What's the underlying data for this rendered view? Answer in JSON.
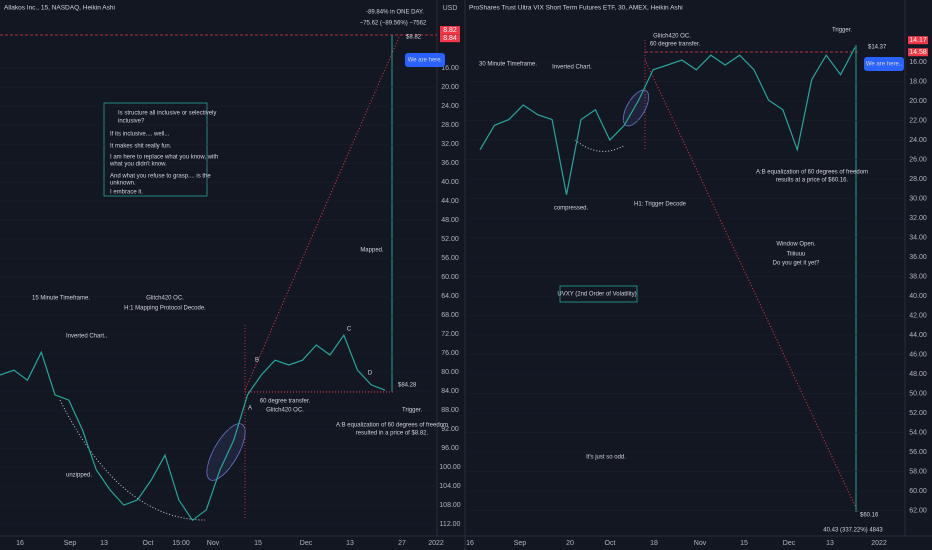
{
  "chart_data": [
    {
      "type": "line",
      "title": "Allakos Inc., 15, NASDAQ, Heikin Ashi",
      "currency": "USD",
      "color": "#26a69a",
      "inverted_axis": true,
      "ylim": [
        2.7,
        114.3
      ],
      "yticks": [
        {
          "value": 16,
          "label": "16.00"
        },
        {
          "value": 20,
          "label": "20.00"
        },
        {
          "value": 24,
          "label": "24.00"
        },
        {
          "value": 28,
          "label": "28.00"
        },
        {
          "value": 32,
          "label": "32.00"
        },
        {
          "value": 36,
          "label": "36.00"
        },
        {
          "value": 40,
          "label": "40.00"
        },
        {
          "value": 44,
          "label": "44.00"
        },
        {
          "value": 48,
          "label": "48.00"
        },
        {
          "value": 52,
          "label": "52.00"
        },
        {
          "value": 56,
          "label": "56.00"
        },
        {
          "value": 60,
          "label": "60.00"
        },
        {
          "value": 64,
          "label": "64.00"
        },
        {
          "value": 68,
          "label": "68.00"
        },
        {
          "value": 72,
          "label": "72.00"
        },
        {
          "value": 76,
          "label": "76.00"
        },
        {
          "value": 80,
          "label": "80.00"
        },
        {
          "value": 84,
          "label": "84.00"
        },
        {
          "value": 88,
          "label": "88.00"
        },
        {
          "value": 92,
          "label": "92.00"
        },
        {
          "value": 96,
          "label": "96.00"
        },
        {
          "value": 100,
          "label": "100.00"
        },
        {
          "value": 104,
          "label": "104.00"
        },
        {
          "value": 108,
          "label": "108.00"
        },
        {
          "value": 112,
          "label": "112.00"
        }
      ],
      "price_labels": [
        {
          "value": 8.82,
          "label": "8.82"
        },
        {
          "value": 8.84,
          "label": "8.84"
        }
      ],
      "xtick_labels": [
        "16",
        "Sep",
        "13",
        "Oct",
        "15:00",
        "Nov",
        "15",
        "Dec",
        "13",
        "27",
        "2022"
      ],
      "values": [
        80.6,
        79.6,
        81.7,
        75.8,
        84.8,
        85.9,
        92.2,
        100.6,
        104.8,
        108.0,
        106.9,
        102.7,
        97.5,
        106.9,
        111.2,
        109.0,
        100.6,
        94.3,
        84.8,
        80.6,
        77.5,
        78.5,
        77.5,
        74.3,
        76.4,
        72.2,
        79.6,
        82.7,
        83.8
      ],
      "annotations": [
        "-89.84% in ONE DAY.",
        "−75.62 (−89.56%) −7562",
        "$8.82",
        "We are here.",
        "Is structure all inclusive or selectively",
        "inclusive?",
        "If its inclusive.... well...",
        "It makes shit really fun.",
        "I am here to replace what you know, with",
        "what you didn't know.",
        "And what you refuse to grasp.... is the",
        "unknown.",
        "I embrace it.",
        "15 Minute Timeframe.",
        "Inverted Chart..",
        "Glitch420 OC.",
        "H:1 Mapping Protocol Decode.",
        "Mapped.",
        "$84.28",
        "60 degree transfer.",
        "Glitch420 OC.",
        "Trigger.",
        "A:B equalization of 60 degrees of freedom",
        "resulted in a price of $8.82.",
        "unzipped.",
        "A",
        "B",
        "C",
        "D"
      ]
    },
    {
      "type": "line",
      "title": "ProShares Trust Ultra VIX Short Term Futures ETF, 30, AMEX, Heikin Ashi",
      "color": "#26a69a",
      "inverted_axis": true,
      "ylim": [
        10.15,
        64.5
      ],
      "yticks": [
        {
          "value": 16,
          "label": "16.00"
        },
        {
          "value": 18,
          "label": "18.00"
        },
        {
          "value": 20,
          "label": "20.00"
        },
        {
          "value": 22,
          "label": "22.00"
        },
        {
          "value": 24,
          "label": "24.00"
        },
        {
          "value": 26,
          "label": "26.00"
        },
        {
          "value": 28,
          "label": "28.00"
        },
        {
          "value": 30,
          "label": "30.00"
        },
        {
          "value": 32,
          "label": "32.00"
        },
        {
          "value": 34,
          "label": "34.00"
        },
        {
          "value": 36,
          "label": "36.00"
        },
        {
          "value": 38,
          "label": "38.00"
        },
        {
          "value": 40,
          "label": "40.00"
        },
        {
          "value": 42,
          "label": "42.00"
        },
        {
          "value": 44,
          "label": "44.00"
        },
        {
          "value": 46,
          "label": "46.00"
        },
        {
          "value": 48,
          "label": "48.00"
        },
        {
          "value": 50,
          "label": "50.00"
        },
        {
          "value": 52,
          "label": "52.00"
        },
        {
          "value": 54,
          "label": "54.00"
        },
        {
          "value": 56,
          "label": "56.00"
        },
        {
          "value": 58,
          "label": "58.00"
        },
        {
          "value": 60,
          "label": "60.00"
        },
        {
          "value": 62,
          "label": "62.00"
        }
      ],
      "price_labels": [
        {
          "value": 14.17,
          "label": "14.17"
        },
        {
          "value": 14.58,
          "label": "14.58"
        }
      ],
      "xtick_labels": [
        "16",
        "Sep",
        "20",
        "Oct",
        "18",
        "Nov",
        "15",
        "Dec",
        "13",
        "2022"
      ],
      "values": [
        25.0,
        22.5,
        21.9,
        20.4,
        21.4,
        21.9,
        29.6,
        21.9,
        20.9,
        24.0,
        22.5,
        19.9,
        16.8,
        16.3,
        15.8,
        16.8,
        15.3,
        16.3,
        15.3,
        16.8,
        19.9,
        20.9,
        25.0,
        17.8,
        15.3,
        17.3,
        14.5
      ],
      "annotations": [
        "Trigger.",
        "$14.37",
        "We are here..",
        "30 Minute Timeframe.",
        "Inverted Chart.",
        "Glitch420 OC.",
        "60 degree transfer.",
        "A:B equalization of 60 degrees of freedom",
        "results at a price of $60.16.",
        "compressed.",
        "H1: Trigger Decode",
        "Window Open.",
        "Tiiiiuuu",
        "Do you get it yet?",
        "UVXY (2nd Order of Volatility)",
        "It's just so odd.",
        "$60.16",
        "40.43 (337.22%) 4843"
      ]
    }
  ]
}
